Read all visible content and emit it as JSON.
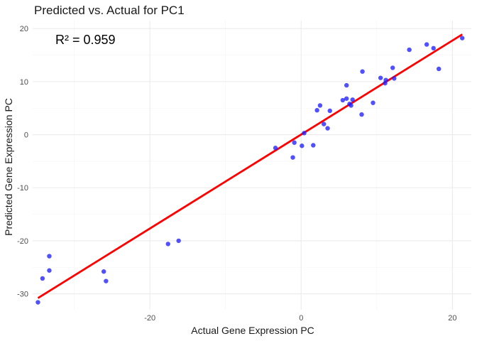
{
  "chart_data": {
    "type": "scatter",
    "title": "Predicted vs. Actual for PC1",
    "xlabel": "Actual Gene Expression PC",
    "ylabel": "Predicted Gene Expression PC",
    "xlim": [
      -35.5,
      22.5
    ],
    "ylim": [
      -33,
      21.5
    ],
    "x_ticks": [
      -20,
      0,
      20
    ],
    "y_ticks": [
      -30,
      -20,
      -10,
      0,
      10,
      20
    ],
    "x_tick_labels": [
      "-20",
      "0",
      "20"
    ],
    "y_tick_labels": [
      "-30",
      "-20",
      "-10",
      "0",
      "10",
      "20"
    ],
    "grid": true,
    "annotation": "R² = 0.959",
    "colors": {
      "points": "#1f1fff",
      "fit_line": "#ff0000"
    },
    "series": [
      {
        "kind": "points",
        "points": [
          [
            -34.8,
            -31.6
          ],
          [
            -34.2,
            -27.1
          ],
          [
            -33.3,
            -22.9
          ],
          [
            -33.3,
            -25.6
          ],
          [
            -26.1,
            -25.8
          ],
          [
            -25.8,
            -27.6
          ],
          [
            -17.6,
            -20.6
          ],
          [
            -16.2,
            -20.0
          ],
          [
            -3.4,
            -2.5
          ],
          [
            -1.1,
            -4.3
          ],
          [
            -0.9,
            -1.5
          ],
          [
            0.1,
            -2.1
          ],
          [
            0.4,
            0.3
          ],
          [
            1.6,
            -2.0
          ],
          [
            2.1,
            4.6
          ],
          [
            2.5,
            5.5
          ],
          [
            3.0,
            2.0
          ],
          [
            3.5,
            1.2
          ],
          [
            3.8,
            4.5
          ],
          [
            5.5,
            6.5
          ],
          [
            6.0,
            6.8
          ],
          [
            6.0,
            9.3
          ],
          [
            6.4,
            5.8
          ],
          [
            6.6,
            5.5
          ],
          [
            6.8,
            6.6
          ],
          [
            8.0,
            3.8
          ],
          [
            8.1,
            11.9
          ],
          [
            9.5,
            6.0
          ],
          [
            10.5,
            10.7
          ],
          [
            11.1,
            9.7
          ],
          [
            11.2,
            10.3
          ],
          [
            12.1,
            12.6
          ],
          [
            12.3,
            10.6
          ],
          [
            14.3,
            16.0
          ],
          [
            16.6,
            17.0
          ],
          [
            17.5,
            16.3
          ],
          [
            18.2,
            12.4
          ],
          [
            21.3,
            18.2
          ]
        ]
      },
      {
        "kind": "fit_line",
        "points": [
          [
            -34.8,
            -30.8
          ],
          [
            21.3,
            18.9
          ]
        ]
      }
    ]
  }
}
